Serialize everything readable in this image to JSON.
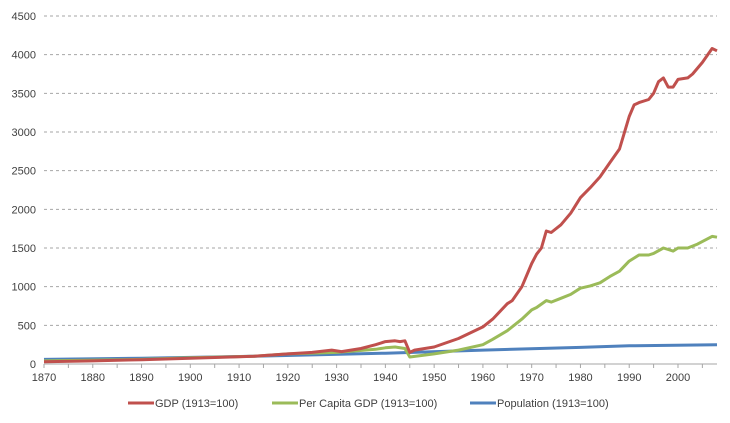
{
  "chart_data": {
    "type": "line",
    "title": "",
    "xlabel": "",
    "ylabel": "",
    "xlim": [
      1870,
      2008
    ],
    "ylim": [
      0,
      4500
    ],
    "x_ticks": [
      1870,
      1880,
      1890,
      1900,
      1910,
      1920,
      1930,
      1940,
      1950,
      1960,
      1970,
      1980,
      1990,
      2000
    ],
    "y_ticks": [
      0,
      500,
      1000,
      1500,
      2000,
      2500,
      3000,
      3500,
      4000,
      4500
    ],
    "grid": "horizontal dashed",
    "legend_position": "bottom",
    "series": [
      {
        "name": "GDP (1913=100)",
        "color": "#c0504d",
        "points": [
          [
            1870,
            30
          ],
          [
            1880,
            40
          ],
          [
            1890,
            55
          ],
          [
            1900,
            75
          ],
          [
            1910,
            95
          ],
          [
            1913,
            100
          ],
          [
            1920,
            130
          ],
          [
            1925,
            150
          ],
          [
            1929,
            180
          ],
          [
            1931,
            160
          ],
          [
            1935,
            200
          ],
          [
            1938,
            250
          ],
          [
            1940,
            290
          ],
          [
            1942,
            300
          ],
          [
            1943,
            290
          ],
          [
            1944,
            300
          ],
          [
            1945,
            150
          ],
          [
            1946,
            180
          ],
          [
            1950,
            220
          ],
          [
            1955,
            330
          ],
          [
            1960,
            480
          ],
          [
            1962,
            580
          ],
          [
            1965,
            780
          ],
          [
            1966,
            820
          ],
          [
            1968,
            1000
          ],
          [
            1970,
            1300
          ],
          [
            1971,
            1420
          ],
          [
            1972,
            1500
          ],
          [
            1973,
            1720
          ],
          [
            1974,
            1700
          ],
          [
            1976,
            1800
          ],
          [
            1978,
            1950
          ],
          [
            1980,
            2150
          ],
          [
            1982,
            2280
          ],
          [
            1984,
            2420
          ],
          [
            1986,
            2600
          ],
          [
            1988,
            2780
          ],
          [
            1990,
            3200
          ],
          [
            1991,
            3350
          ],
          [
            1992,
            3380
          ],
          [
            1994,
            3420
          ],
          [
            1995,
            3500
          ],
          [
            1996,
            3650
          ],
          [
            1997,
            3700
          ],
          [
            1998,
            3580
          ],
          [
            1999,
            3580
          ],
          [
            2000,
            3680
          ],
          [
            2002,
            3700
          ],
          [
            2003,
            3750
          ],
          [
            2005,
            3900
          ],
          [
            2007,
            4080
          ],
          [
            2008,
            4050
          ]
        ]
      },
      {
        "name": "Per Capita GDP (1913=100)",
        "color": "#9bbb59",
        "points": [
          [
            1870,
            40
          ],
          [
            1890,
            60
          ],
          [
            1900,
            80
          ],
          [
            1913,
            100
          ],
          [
            1920,
            130
          ],
          [
            1930,
            150
          ],
          [
            1938,
            190
          ],
          [
            1940,
            210
          ],
          [
            1942,
            220
          ],
          [
            1944,
            200
          ],
          [
            1945,
            90
          ],
          [
            1950,
            130
          ],
          [
            1955,
            180
          ],
          [
            1960,
            250
          ],
          [
            1962,
            320
          ],
          [
            1965,
            430
          ],
          [
            1968,
            580
          ],
          [
            1970,
            700
          ],
          [
            1971,
            730
          ],
          [
            1973,
            820
          ],
          [
            1974,
            800
          ],
          [
            1976,
            850
          ],
          [
            1978,
            900
          ],
          [
            1980,
            980
          ],
          [
            1982,
            1010
          ],
          [
            1984,
            1050
          ],
          [
            1986,
            1130
          ],
          [
            1988,
            1200
          ],
          [
            1990,
            1330
          ],
          [
            1992,
            1410
          ],
          [
            1994,
            1410
          ],
          [
            1995,
            1430
          ],
          [
            1997,
            1500
          ],
          [
            1998,
            1480
          ],
          [
            1999,
            1460
          ],
          [
            2000,
            1500
          ],
          [
            2002,
            1500
          ],
          [
            2004,
            1550
          ],
          [
            2007,
            1650
          ],
          [
            2008,
            1640
          ]
        ]
      },
      {
        "name": "Population (1913=100)",
        "color": "#4f81bd",
        "points": [
          [
            1870,
            60
          ],
          [
            1890,
            75
          ],
          [
            1913,
            100
          ],
          [
            1940,
            140
          ],
          [
            1960,
            180
          ],
          [
            1980,
            215
          ],
          [
            1990,
            235
          ],
          [
            2008,
            250
          ]
        ]
      }
    ]
  }
}
